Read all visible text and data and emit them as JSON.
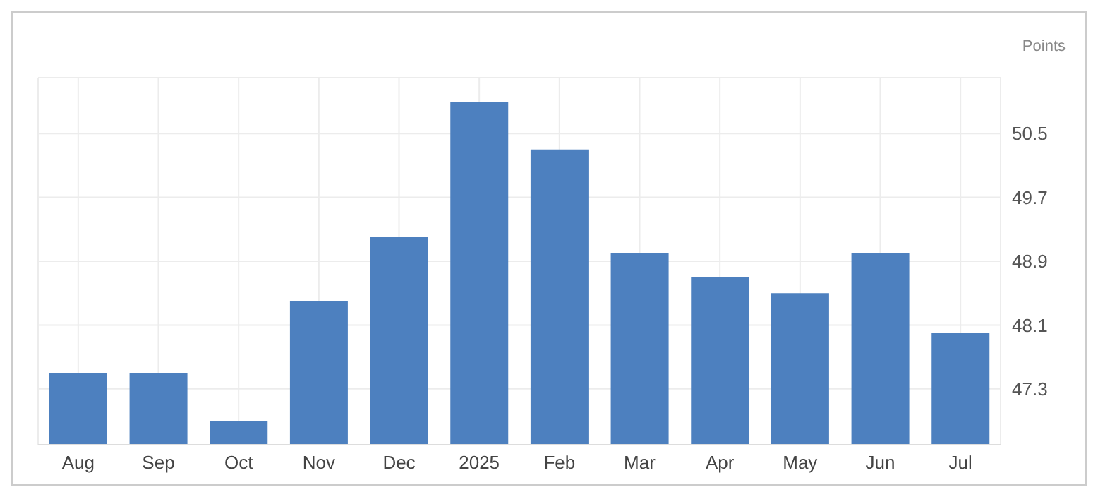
{
  "chart_data": {
    "type": "bar",
    "ylabel": "Points",
    "categories": [
      "Aug",
      "Sep",
      "Oct",
      "Nov",
      "Dec",
      "2025",
      "Feb",
      "Mar",
      "Apr",
      "May",
      "Jun",
      "Jul"
    ],
    "values": [
      47.5,
      47.5,
      46.9,
      48.4,
      49.2,
      50.9,
      50.3,
      49.0,
      48.7,
      48.5,
      49.0,
      48.0
    ],
    "color": "#4d80bf",
    "ylim": [
      46.6,
      51.2
    ],
    "yticks": [
      47.3,
      48.1,
      48.9,
      49.7,
      50.5
    ],
    "grid": true
  }
}
